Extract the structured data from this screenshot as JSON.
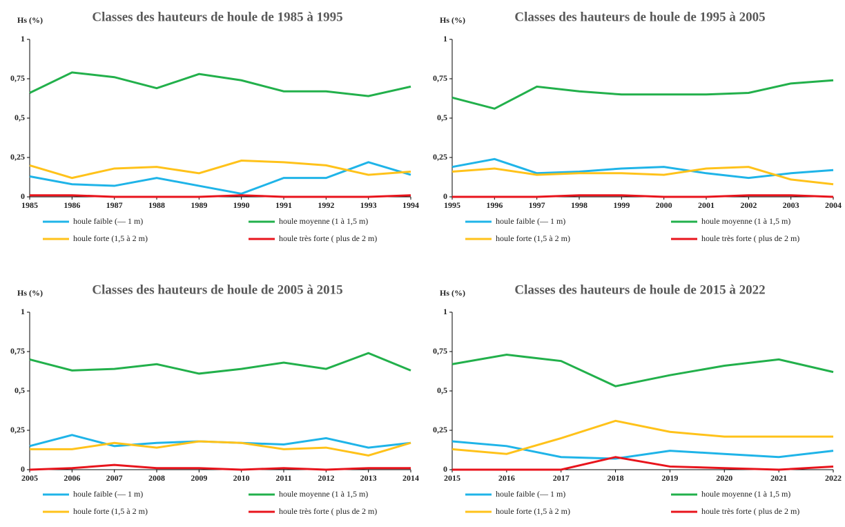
{
  "chart_data": [
    {
      "type": "line",
      "title": "Classes des hauteurs de houle de 1985 à 1995",
      "y_label": "Hs (%)",
      "categories": [
        "1985",
        "1986",
        "1987",
        "1988",
        "1989",
        "1990",
        "1991",
        "1992",
        "1993",
        "1994"
      ],
      "ylim": [
        0,
        1
      ],
      "yticks": [
        0,
        {
          "value": 0.25,
          "label": "0,25"
        },
        {
          "value": 0.5,
          "label": "0,5"
        },
        {
          "value": 0.75,
          "label": "0,75"
        },
        1
      ],
      "series": [
        {
          "name": "houle faible (— 1 m)",
          "color": "#1fb4e8",
          "values": [
            0.13,
            0.08,
            0.07,
            0.12,
            0.07,
            0.02,
            0.12,
            0.12,
            0.22,
            0.14
          ]
        },
        {
          "name": "houle moyenne (1 à 1,5 m)",
          "color": "#22b04b",
          "values": [
            0.66,
            0.79,
            0.76,
            0.69,
            0.78,
            0.74,
            0.67,
            0.67,
            0.64,
            0.7
          ]
        },
        {
          "name": "houle forte (1,5 à 2 m)",
          "color": "#ffc21a",
          "values": [
            0.2,
            0.12,
            0.18,
            0.19,
            0.15,
            0.23,
            0.22,
            0.2,
            0.14,
            0.16
          ]
        },
        {
          "name": "houle très forte ( plus de 2 m)",
          "color": "#e8141c",
          "values": [
            0.01,
            0.01,
            0,
            0,
            0,
            0.01,
            0,
            0,
            0,
            0.01
          ]
        }
      ]
    },
    {
      "type": "line",
      "title": "Classes des hauteurs de houle de 1995 à 2005",
      "y_label": "Hs (%)",
      "categories": [
        "1995",
        "1996",
        "1997",
        "1998",
        "1999",
        "2000",
        "2001",
        "2002",
        "2003",
        "2004"
      ],
      "ylim": [
        0,
        1
      ],
      "yticks": [
        0,
        {
          "value": 0.25,
          "label": "0,25"
        },
        {
          "value": 0.5,
          "label": "0,5"
        },
        {
          "value": 0.75,
          "label": "0,75"
        },
        1
      ],
      "series": [
        {
          "name": "houle faible (— 1 m)",
          "color": "#1fb4e8",
          "values": [
            0.19,
            0.24,
            0.15,
            0.16,
            0.18,
            0.19,
            0.15,
            0.12,
            0.15,
            0.17
          ]
        },
        {
          "name": "houle moyenne (1 à 1,5 m)",
          "color": "#22b04b",
          "values": [
            0.63,
            0.56,
            0.7,
            0.67,
            0.65,
            0.65,
            0.65,
            0.66,
            0.72,
            0.74
          ]
        },
        {
          "name": "houle forte (1,5 à 2 m)",
          "color": "#ffc21a",
          "values": [
            0.16,
            0.18,
            0.14,
            0.15,
            0.15,
            0.14,
            0.18,
            0.19,
            0.11,
            0.08
          ]
        },
        {
          "name": "houle très forte ( plus de 2 m)",
          "color": "#e8141c",
          "values": [
            0,
            0,
            0,
            0.01,
            0.01,
            0,
            0,
            0.01,
            0.01,
            0
          ]
        }
      ]
    },
    {
      "type": "line",
      "title": "Classes des hauteurs de houle de 2005 à 2015",
      "y_label": "Hs (%)",
      "categories": [
        "2005",
        "2006",
        "2007",
        "2008",
        "2009",
        "2010",
        "2011",
        "2012",
        "2013",
        "2014"
      ],
      "ylim": [
        0,
        1
      ],
      "yticks": [
        0,
        {
          "value": 0.25,
          "label": "0,25"
        },
        {
          "value": 0.5,
          "label": "0,5"
        },
        {
          "value": 0.75,
          "label": "0,75"
        },
        1
      ],
      "series": [
        {
          "name": "houle faible (— 1 m)",
          "color": "#1fb4e8",
          "values": [
            0.15,
            0.22,
            0.15,
            0.17,
            0.18,
            0.17,
            0.16,
            0.2,
            0.14,
            0.17
          ]
        },
        {
          "name": "houle moyenne (1 à 1,5 m)",
          "color": "#22b04b",
          "values": [
            0.7,
            0.63,
            0.64,
            0.67,
            0.61,
            0.64,
            0.68,
            0.64,
            0.74,
            0.63
          ]
        },
        {
          "name": "houle forte (1,5 à 2 m)",
          "color": "#ffc21a",
          "values": [
            0.13,
            0.13,
            0.17,
            0.14,
            0.18,
            0.17,
            0.13,
            0.14,
            0.09,
            0.17
          ]
        },
        {
          "name": "houle très forte ( plus de 2 m)",
          "color": "#e8141c",
          "values": [
            0,
            0.01,
            0.03,
            0.01,
            0.01,
            0,
            0.01,
            0,
            0.01,
            0.01
          ]
        }
      ]
    },
    {
      "type": "line",
      "title": "Classes des hauteurs de houle de 2015 à 2022",
      "y_label": "Hs (%)",
      "categories": [
        "2015",
        "2016",
        "2017",
        "2018",
        "2019",
        "2020",
        "2021",
        "2022"
      ],
      "ylim": [
        0,
        1
      ],
      "yticks": [
        0,
        {
          "value": 0.25,
          "label": "0,25"
        },
        {
          "value": 0.5,
          "label": "0,5"
        },
        {
          "value": 0.75,
          "label": "0,75"
        },
        1
      ],
      "series": [
        {
          "name": "houle faible (— 1 m)",
          "color": "#1fb4e8",
          "values": [
            0.18,
            0.15,
            0.08,
            0.07,
            0.12,
            0.1,
            0.08,
            0.12
          ]
        },
        {
          "name": "houle moyenne (1 à 1,5 m)",
          "color": "#22b04b",
          "values": [
            0.67,
            0.73,
            0.69,
            0.53,
            0.6,
            0.66,
            0.7,
            0.62
          ]
        },
        {
          "name": "houle forte (1,5 à 2 m)",
          "color": "#ffc21a",
          "values": [
            0.13,
            0.1,
            0.2,
            0.31,
            0.24,
            0.21,
            0.21,
            0.21
          ]
        },
        {
          "name": "houle très forte ( plus de 2 m)",
          "color": "#e8141c",
          "values": [
            0,
            0,
            0,
            0.08,
            0.02,
            0.01,
            0,
            0.02
          ]
        }
      ]
    }
  ]
}
